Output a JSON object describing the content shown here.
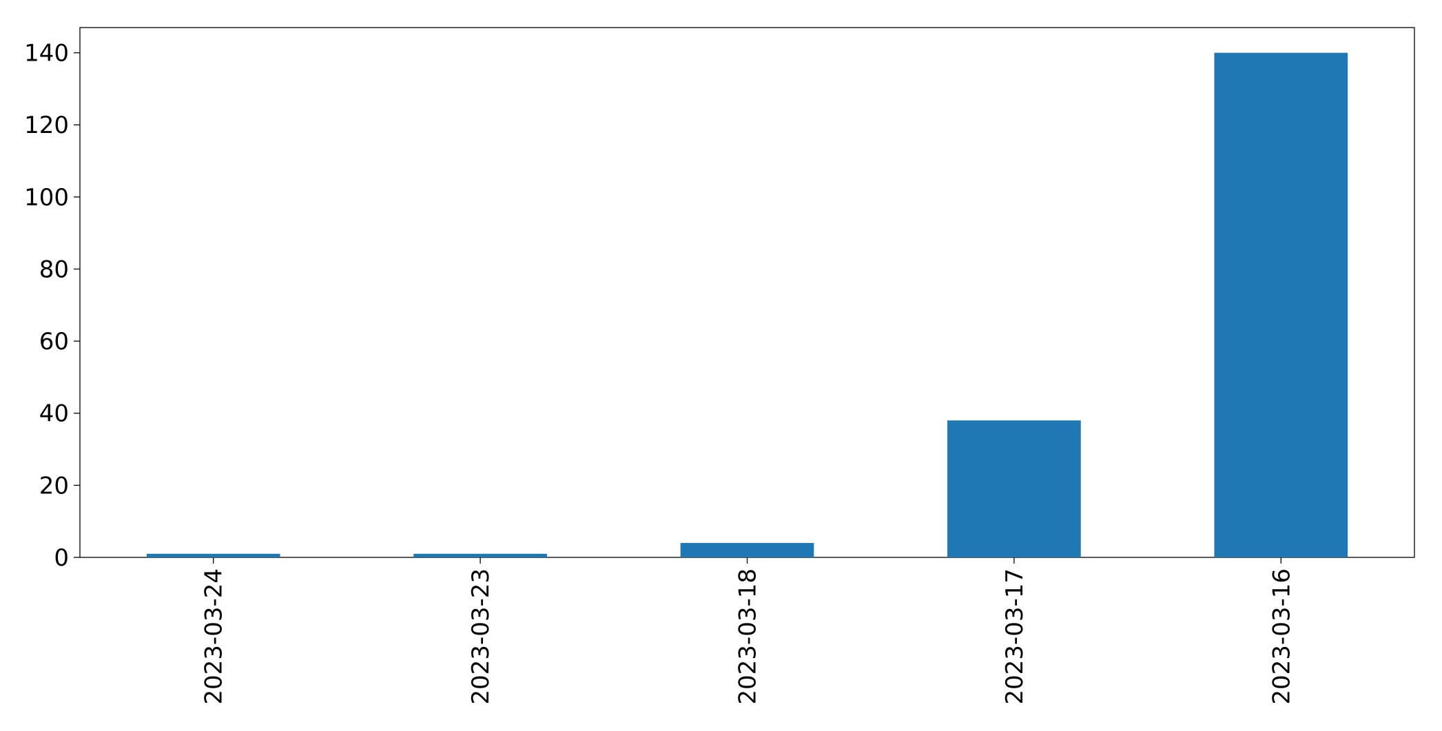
{
  "chart_data": {
    "type": "bar",
    "categories": [
      "2023-03-24",
      "2023-03-23",
      "2023-03-18",
      "2023-03-17",
      "2023-03-16"
    ],
    "values": [
      1,
      1,
      4,
      38,
      140
    ],
    "color": "#1f77b4",
    "ylim": [
      0,
      147
    ],
    "yticks": [
      0,
      20,
      40,
      60,
      80,
      100,
      120,
      140
    ],
    "grid": false
  }
}
